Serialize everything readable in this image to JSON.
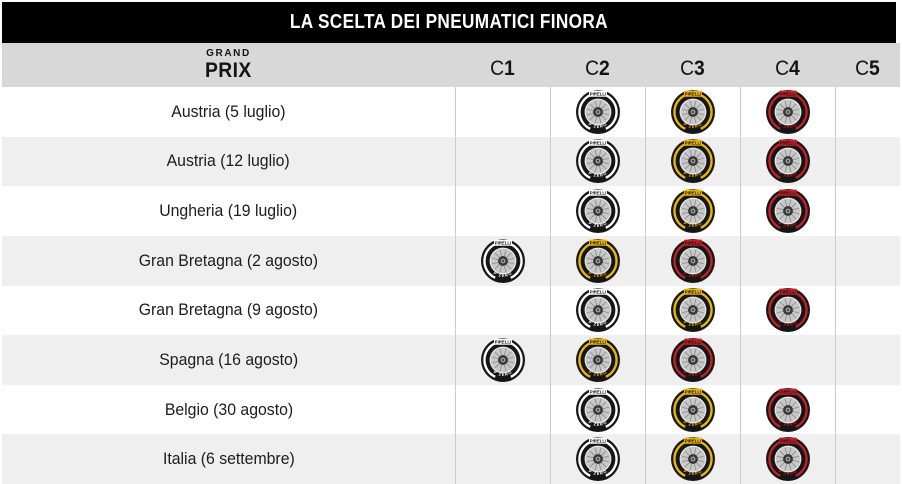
{
  "title": "LA SCELTA DEI PNEUMATICI FINORA",
  "header": {
    "grand": "GRAND",
    "prix": "PRIX",
    "compounds": [
      "C1",
      "C2",
      "C3",
      "C4",
      "C5"
    ]
  },
  "tire": {
    "brand": "PIRELLI",
    "model": "P ZERO"
  },
  "compound_colors": {
    "hard": "#ffffff",
    "medium": "#e9b50b",
    "soft": "#c32026"
  },
  "palette": {
    "title_bar_bg": "#000000",
    "title_text": "#ffffff",
    "header_bg": "#d8d8d8",
    "row_alt_bg": "#f0eff0",
    "divider": "#cccccc",
    "tire_rubber": "#161616"
  },
  "rows": [
    {
      "gp": "Austria (5 luglio)",
      "tires": {
        "C2": "hard",
        "C3": "medium",
        "C4": "soft"
      }
    },
    {
      "gp": "Austria (12 luglio)",
      "tires": {
        "C2": "hard",
        "C3": "medium",
        "C4": "soft"
      }
    },
    {
      "gp": "Ungheria (19 luglio)",
      "tires": {
        "C2": "hard",
        "C3": "medium",
        "C4": "soft"
      }
    },
    {
      "gp": "Gran Bretagna (2 agosto)",
      "tires": {
        "C1": "hard",
        "C2": "medium",
        "C3": "soft"
      }
    },
    {
      "gp": "Gran Bretagna (9 agosto)",
      "tires": {
        "C2": "hard",
        "C3": "medium",
        "C4": "soft"
      }
    },
    {
      "gp": "Spagna (16 agosto)",
      "tires": {
        "C1": "hard",
        "C2": "medium",
        "C3": "soft"
      }
    },
    {
      "gp": "Belgio (30 agosto)",
      "tires": {
        "C2": "hard",
        "C3": "medium",
        "C4": "soft"
      }
    },
    {
      "gp": "Italia (6 settembre)",
      "tires": {
        "C2": "hard",
        "C3": "medium",
        "C4": "soft"
      }
    }
  ],
  "chart_data": {
    "type": "table",
    "title": "LA SCELTA DEI PNEUMATICI FINORA",
    "columns": [
      "Grand Prix",
      "C1",
      "C2",
      "C3",
      "C4",
      "C5"
    ],
    "rows": [
      [
        "Austria (5 luglio)",
        "",
        "hard-white",
        "medium-yellow",
        "soft-red",
        ""
      ],
      [
        "Austria (12 luglio)",
        "",
        "hard-white",
        "medium-yellow",
        "soft-red",
        ""
      ],
      [
        "Ungheria (19 luglio)",
        "",
        "hard-white",
        "medium-yellow",
        "soft-red",
        ""
      ],
      [
        "Gran Bretagna (2 agosto)",
        "hard-white",
        "medium-yellow",
        "soft-red",
        "",
        ""
      ],
      [
        "Gran Bretagna (9 agosto)",
        "",
        "hard-white",
        "medium-yellow",
        "soft-red",
        ""
      ],
      [
        "Spagna (16 agosto)",
        "hard-white",
        "medium-yellow",
        "soft-red",
        "",
        ""
      ],
      [
        "Belgio (30 agosto)",
        "",
        "hard-white",
        "medium-yellow",
        "soft-red",
        ""
      ],
      [
        "Italia (6 settembre)",
        "",
        "hard-white",
        "medium-yellow",
        "soft-red",
        ""
      ]
    ],
    "legend": "Pirelli tire icons; sidewall color marks compound role: white=hard, yellow=medium, red=soft"
  }
}
